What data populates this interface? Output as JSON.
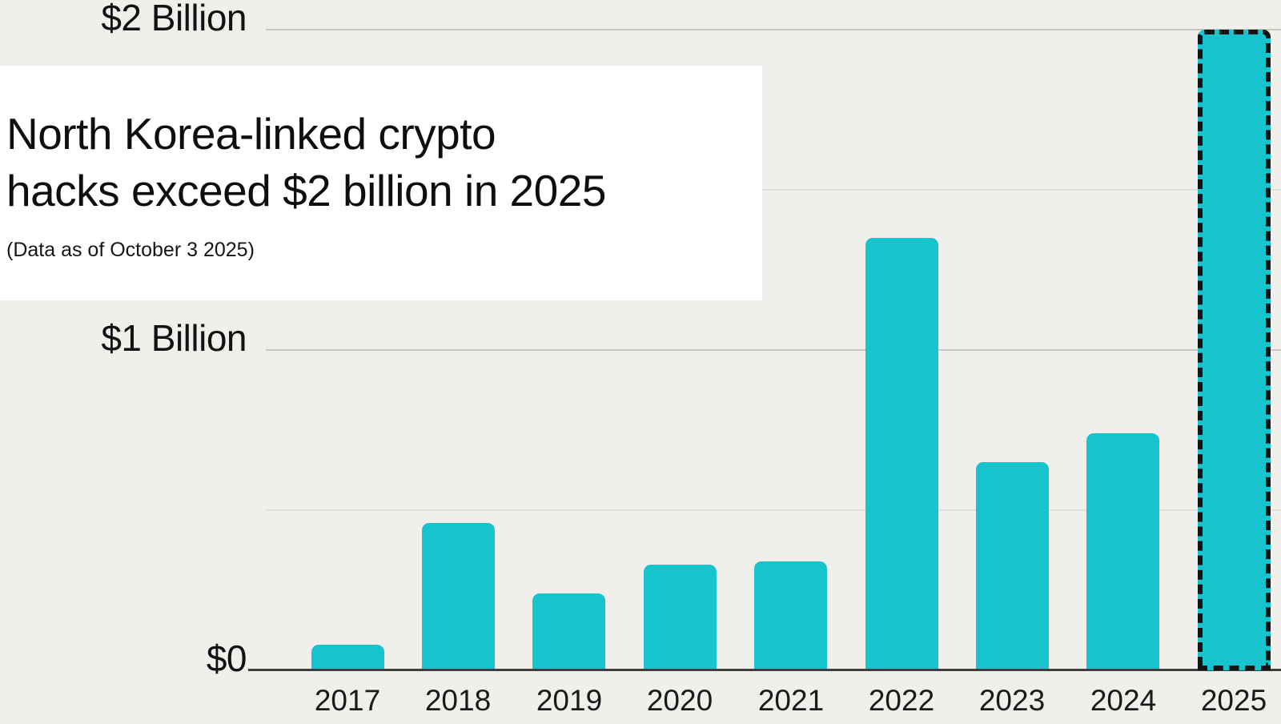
{
  "header": {
    "title": "North Korea-linked crypto hacks exceed $2 billion in 2025",
    "title_lines": [
      "North Korea-linked crypto",
      "hacks exceed $2 billion in 2025"
    ],
    "subtitle": "(Data as of October 3 2025)"
  },
  "chart_data": {
    "type": "bar",
    "title": "North Korea-linked crypto hacks exceed $2 billion in 2025",
    "subtitle": "(Data as of October 3 2025)",
    "categories": [
      "2017",
      "2018",
      "2019",
      "2020",
      "2021",
      "2022",
      "2023",
      "2024",
      "2025"
    ],
    "values": [
      0.08,
      0.46,
      0.24,
      0.33,
      0.34,
      1.35,
      0.65,
      0.74,
      2.0
    ],
    "unit": "USD billions",
    "xlabel": "",
    "ylabel": "",
    "ylim": [
      0,
      2.05
    ],
    "y_ticks": [
      {
        "value": 0,
        "label": "$0"
      },
      {
        "value": 1,
        "label": "$1 Billion"
      },
      {
        "value": 2,
        "label": "$2 Billion"
      }
    ],
    "minor_gridline_values": [
      0.5,
      1.5
    ],
    "grid": true,
    "legend": false,
    "highlighted_category": "2025",
    "highlight_style": "black dashed outline"
  },
  "colors": {
    "background": "#f0efeb",
    "title_box": "#ffffff",
    "bar": "#17c4ce",
    "highlight_border": "#141414",
    "axis_line": "#3e3e3c",
    "gridline_major": "#c6c6c2",
    "gridline_minor": "#e1e1db",
    "text": "#121212"
  }
}
